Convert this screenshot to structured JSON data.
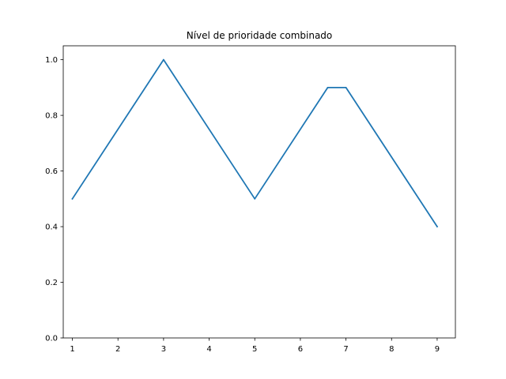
{
  "chart_data": {
    "type": "line",
    "title": "Nível de prioridade combinado",
    "xlabel": "",
    "ylabel": "",
    "xlim": [
      0.8,
      9.4
    ],
    "ylim": [
      0.0,
      1.05
    ],
    "x_ticks": [
      "1",
      "2",
      "3",
      "4",
      "5",
      "6",
      "7",
      "8",
      "9"
    ],
    "y_ticks": [
      "0.0",
      "0.2",
      "0.4",
      "0.6",
      "0.8",
      "1.0"
    ],
    "grid": false,
    "legend": "none",
    "series": [
      {
        "color": "#1f77b4",
        "x": [
          1,
          3,
          5,
          6.6,
          7,
          9
        ],
        "y": [
          0.5,
          1.0,
          0.5,
          0.9,
          0.9,
          0.4
        ]
      }
    ]
  }
}
